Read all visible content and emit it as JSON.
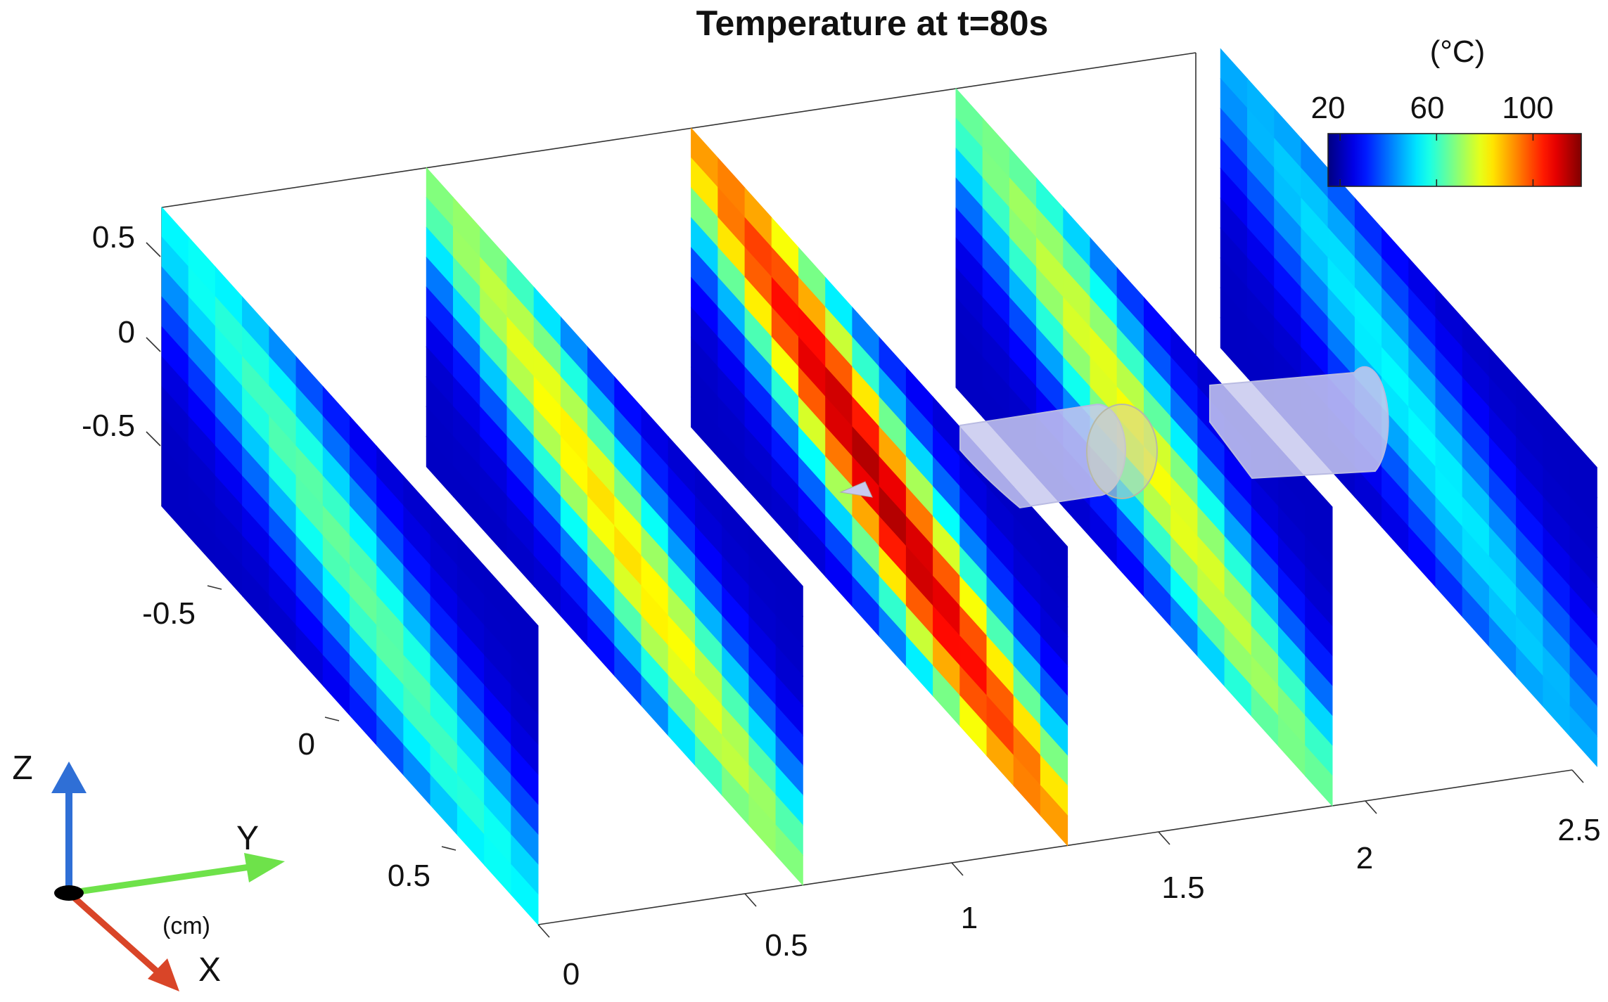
{
  "chart_data": {
    "type": "heatmap",
    "title": "Temperature at t=80s",
    "colorbar": {
      "unit": "(°C)",
      "ticks": [
        20,
        60,
        100
      ],
      "range": [
        15,
        120
      ],
      "colormap": "jet"
    },
    "z_axis": {
      "ticks": [
        "0.5",
        "0",
        "-0.5"
      ],
      "range": [
        -0.75,
        0.75
      ]
    },
    "x_axis": {
      "ticks": [
        "-0.5",
        "0",
        "0.5"
      ]
    },
    "y_axis": {
      "ticks": [
        "0",
        "0.5",
        "1",
        "1.5",
        "2",
        "2.5"
      ],
      "range": [
        0,
        2.5
      ]
    },
    "slices": [
      {
        "y": 0.0,
        "peak_temp": 65
      },
      {
        "y": 0.64,
        "peak_temp": 84
      },
      {
        "y": 1.28,
        "peak_temp": 115
      },
      {
        "y": 1.92,
        "peak_temp": 80
      },
      {
        "y": 2.56,
        "peak_temp": 54
      }
    ],
    "triad": {
      "labels": [
        "Z",
        "Y",
        "X"
      ],
      "unit": "(cm)"
    }
  }
}
